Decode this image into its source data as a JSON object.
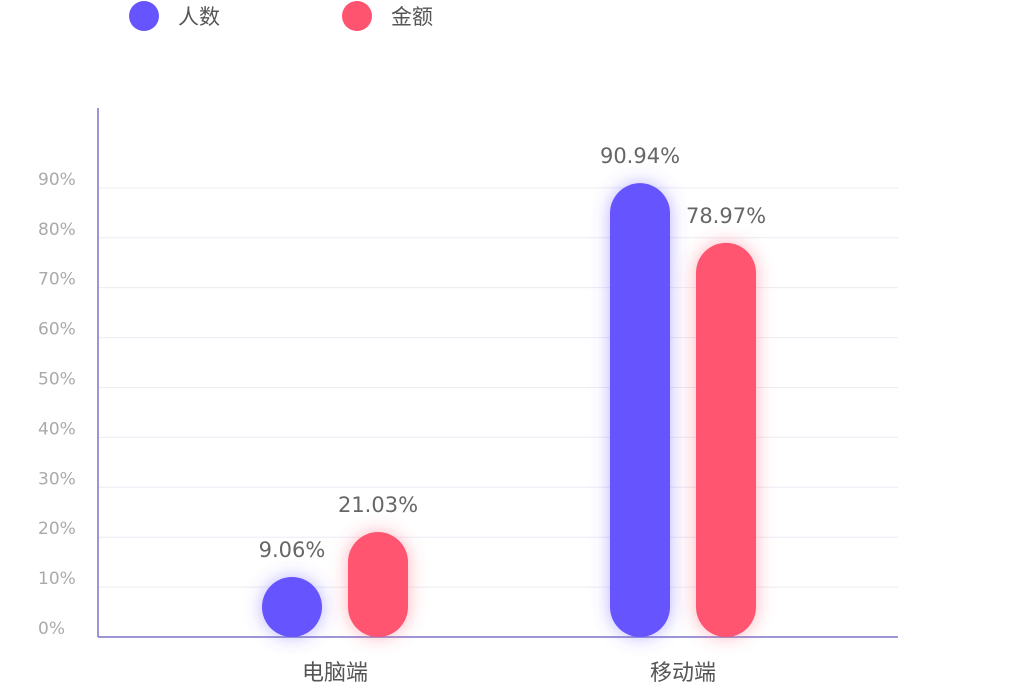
{
  "chart_data": {
    "type": "bar",
    "categories": [
      "电脑端",
      "移动端"
    ],
    "series": [
      {
        "name": "人数",
        "color": "#6655ff",
        "values": [
          9.06,
          90.94
        ],
        "value_labels": [
          "9.06%",
          "90.94%"
        ]
      },
      {
        "name": "金额",
        "color": "#ff5470",
        "values": [
          21.03,
          78.97
        ],
        "value_labels": [
          "21.03%",
          "78.97%"
        ]
      }
    ],
    "ylim": [
      0,
      106
    ],
    "yticks": [
      {
        "value": 0,
        "label": "0%"
      },
      {
        "value": 10,
        "label": "10%"
      },
      {
        "value": 20,
        "label": "20%"
      },
      {
        "value": 30,
        "label": "30%"
      },
      {
        "value": 40,
        "label": "40%"
      },
      {
        "value": 50,
        "label": "50%"
      },
      {
        "value": 60,
        "label": "60%"
      },
      {
        "value": 70,
        "label": "70%"
      },
      {
        "value": 80,
        "label": "80%"
      },
      {
        "value": 90,
        "label": "90%"
      }
    ],
    "grid": true,
    "legend": "top-left"
  }
}
